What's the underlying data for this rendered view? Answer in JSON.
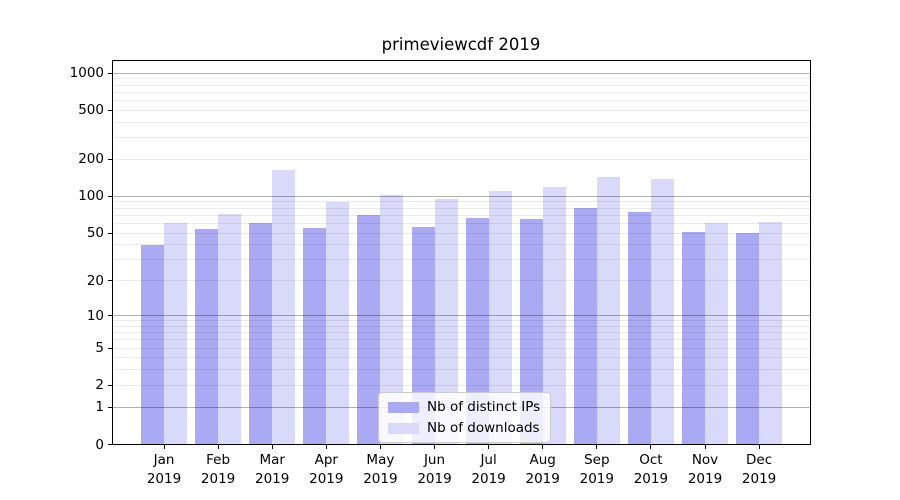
{
  "title": "primeviewcdf 2019",
  "chart_data": {
    "type": "bar",
    "title": "primeviewcdf 2019",
    "yscale": "log1p",
    "ylim": [
      0,
      1251
    ],
    "yticks": [
      0,
      1,
      2,
      5,
      10,
      20,
      50,
      100,
      200,
      500,
      1000
    ],
    "major_gridlines": [
      1,
      10,
      100,
      1000
    ],
    "minor_gridlines": [
      2,
      3,
      4,
      5,
      6,
      7,
      8,
      9,
      20,
      30,
      40,
      50,
      60,
      70,
      80,
      90,
      200,
      300,
      400,
      500,
      600,
      700,
      800,
      900
    ],
    "categories": [
      "Jan",
      "Feb",
      "Mar",
      "Apr",
      "May",
      "Jun",
      "Jul",
      "Aug",
      "Sep",
      "Oct",
      "Nov",
      "Dec"
    ],
    "x_tick_line2": "2019",
    "series": [
      {
        "name": "Nb of distinct IPs",
        "color": "#a9a9f4",
        "values": [
          40,
          54,
          61,
          55,
          71,
          56,
          67,
          65,
          81,
          75,
          51,
          50
        ]
      },
      {
        "name": "Nb of downloads",
        "color": "#d9d9f9",
        "values": [
          60,
          72,
          165,
          90,
          102,
          95,
          111,
          120,
          143,
          138,
          61,
          62
        ]
      }
    ],
    "legend": {
      "position": "lower center",
      "entries": [
        "Nb of distinct IPs",
        "Nb of downloads"
      ]
    },
    "grid": true
  },
  "colors": {
    "background": "#ffffff",
    "bar_distinct_ips": "#a9a9f4",
    "bar_downloads": "#d9d9f9",
    "major_grid": "rgba(0,0,0,0.30)",
    "minor_grid": "rgba(0,0,0,0.08)",
    "spine": "#000000",
    "legend_border": "#cccccc",
    "legend_background": "rgba(255,255,255,0.8)"
  }
}
